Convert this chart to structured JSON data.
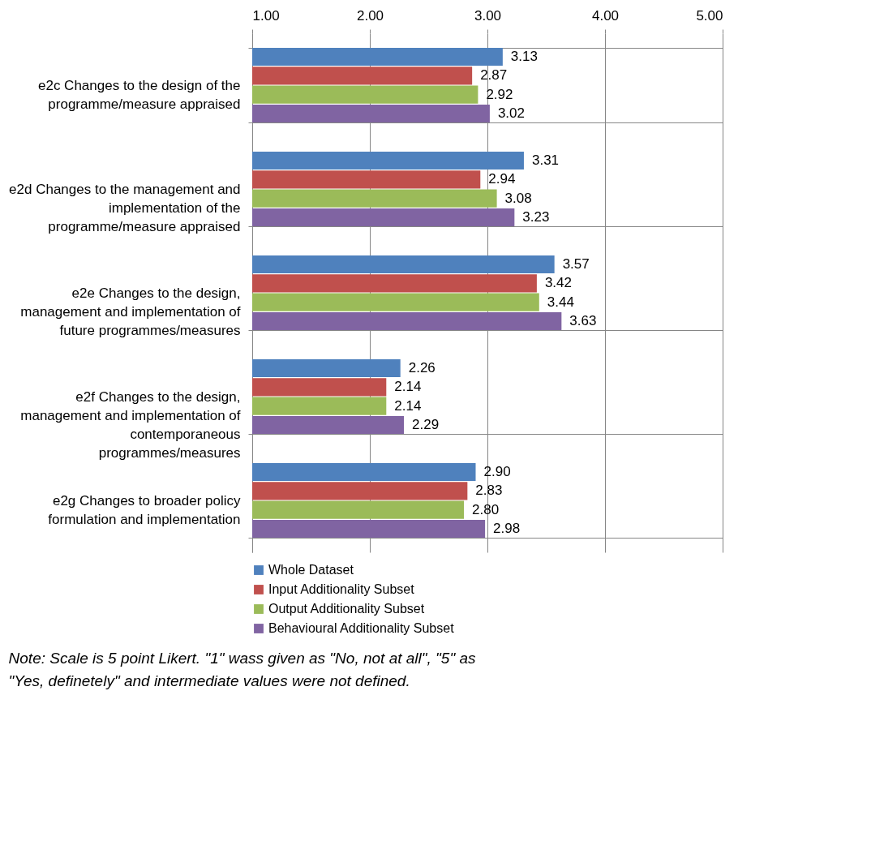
{
  "chart_data": {
    "type": "bar",
    "orientation": "horizontal",
    "categories": [
      "e2c Changes to the design of the programme/measure appraised",
      "e2d Changes to the management and implementation of the programme/measure appraised",
      "e2e Changes to the design, management and implementation of future programmes/measures",
      "e2f Changes to the design, management and implementation of contemporaneous programmes/measures",
      "e2g Changes to broader policy formulation and implementation"
    ],
    "series": [
      {
        "name": "Whole Dataset",
        "color": "#4f81bd",
        "values": [
          3.13,
          3.31,
          3.57,
          2.26,
          2.9
        ],
        "value_labels": [
          "3.13",
          "3.31",
          "3.57",
          "2.26",
          "2.90"
        ]
      },
      {
        "name": "Input Additionality Subset",
        "color": "#c0504d",
        "values": [
          2.87,
          2.94,
          3.42,
          2.14,
          2.83
        ],
        "value_labels": [
          "2.87",
          "2.94",
          "3.42",
          "2.14",
          "2.83"
        ]
      },
      {
        "name": "Output Additionality Subset",
        "color": "#9bbb59",
        "values": [
          2.92,
          3.08,
          3.44,
          2.14,
          2.8
        ],
        "value_labels": [
          "2.92",
          "3.08",
          "3.44",
          "2.14",
          "2.80"
        ]
      },
      {
        "name": "Behavioural Additionality Subset",
        "color": "#8064a2",
        "values": [
          3.02,
          3.23,
          3.63,
          2.29,
          2.98
        ],
        "value_labels": [
          "3.02",
          "3.23",
          "3.63",
          "2.29",
          "2.98"
        ]
      }
    ],
    "xlim": [
      1,
      5
    ],
    "xticks": [
      {
        "value": 1,
        "label": "1.00"
      },
      {
        "value": 2,
        "label": "2.00"
      },
      {
        "value": 3,
        "label": "3.00"
      },
      {
        "value": 4,
        "label": "4.00"
      },
      {
        "value": 5,
        "label": "5.00"
      }
    ],
    "grid": true,
    "legend": "bottom",
    "annotations": [
      "Note: Scale is 5 point Likert. \"1\" wass given as \"No, not at all\", \"5\" as \"Yes, definetely\" and intermediate values were not defined."
    ]
  }
}
